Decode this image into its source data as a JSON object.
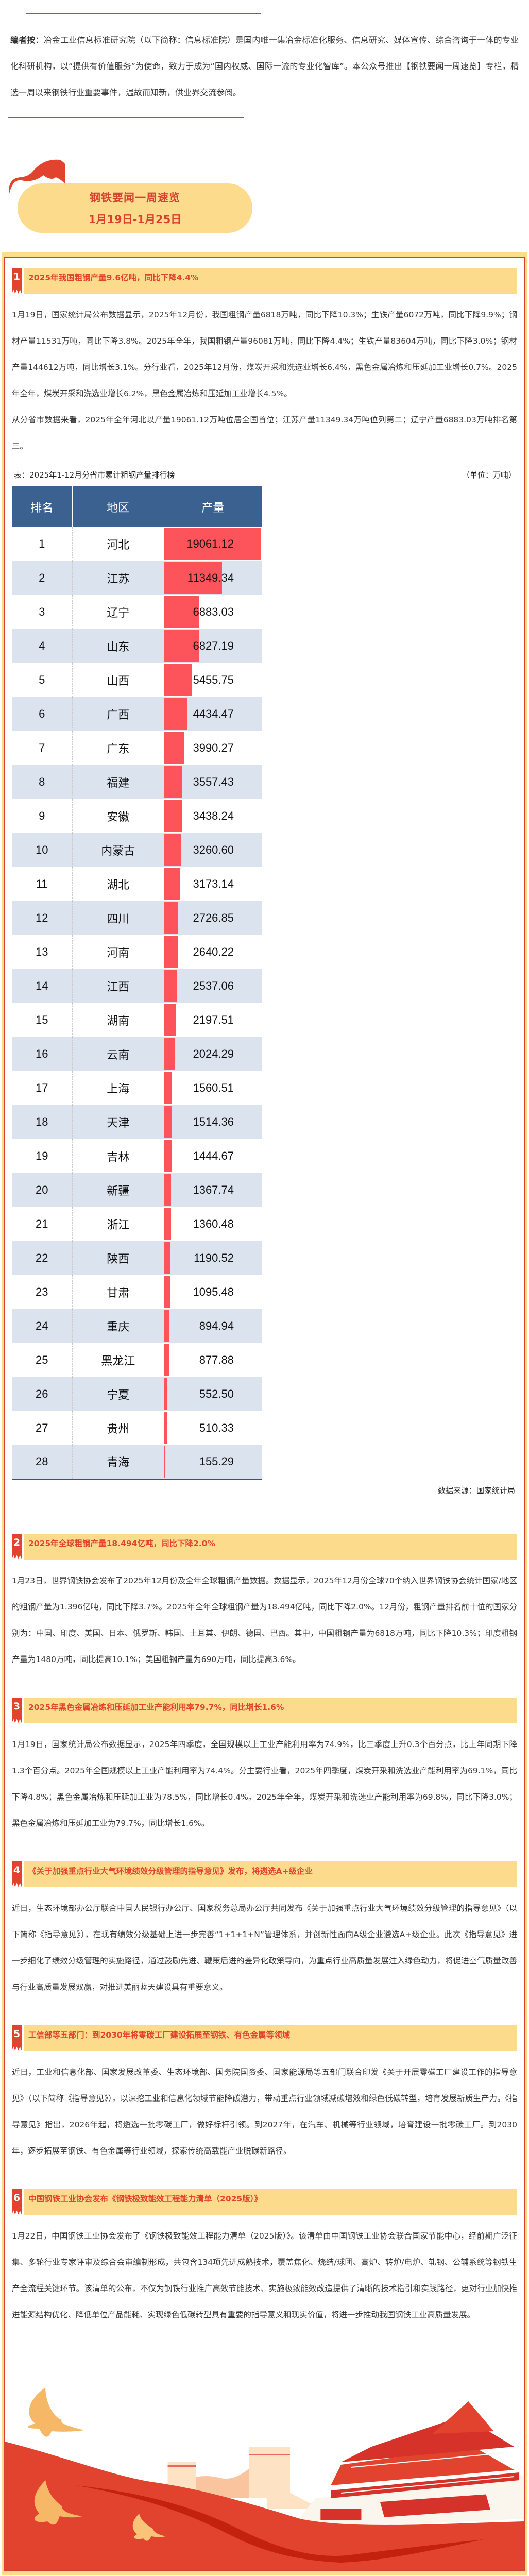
{
  "editor_note": {
    "label": "编者按：",
    "text": "冶金工业信息标准研究院（以下简称：信息标准院）是国内唯一集冶金标准化服务、信息研究、媒体宣传、综合咨询于一体的专业化科研机构，以“提供有价值服务”为使命，致力于成为“国内权威、国际一流的专业化智库”。本公众号推出【钢铁要闻一周速览】专栏，精选一周以来钢铁行业重要事件，温故而知新，供业界交流参阅。"
  },
  "banner": {
    "title": "钢铁要闻一周速览",
    "date_range": "1月19日-1月25日"
  },
  "colors": {
    "accent_red": "#e2432f",
    "banner_yellow": "#fcdc8c",
    "table_header_blue": "#3a6190",
    "bar_red": "#fd545b",
    "alt_row": "#dbe3ef"
  },
  "news": [
    {
      "num": "1",
      "title": "2025年我国粗钢产量9.6亿吨，同比下降4.4%",
      "paragraphs": [
        "1月19日，国家统计局公布数据显示，2025年12月份，我国粗钢产量6818万吨，同比下降10.3%；生铁产量6072万吨，同比下降9.9%；钢材产量11531万吨，同比下降3.8%。2025年全年，我国粗钢产量96081万吨，同比下降4.4%；生铁产量83604万吨，同比下降3.0%；钢材产量144612万吨，同比增长3.1%。分行业看，2025年12月份，煤炭开采和洗选业增长6.4%，黑色金属冶炼和压延加工业增长0.7%。2025年全年，煤炭开采和洗选业增长6.2%，黑色金属冶炼和压延加工业增长4.5%。",
        "从分省市数据来看，2025年全年河北以产量19061.12万吨位居全国首位；江苏产量11349.34万吨位列第二；辽宁产量6883.03万吨排名第三。"
      ]
    },
    {
      "num": "2",
      "title": "2025年全球粗钢产量18.494亿吨，同比下降2.0%",
      "paragraphs": [
        "1月23日，世界钢铁协会发布了2025年12月份及全年全球粗钢产量数据。数据显示，2025年12月份全球70个纳入世界钢铁协会统计国家/地区的粗钢产量为1.396亿吨，同比下降3.7%。2025年全年全球粗钢产量为18.494亿吨，同比下降2.0%。12月份，粗钢产量排名前十位的国家分别为：中国、印度、美国、日本、俄罗斯、韩国、土耳其、伊朗、德国、巴西。其中，中国粗钢产量为6818万吨，同比下降10.3%；印度粗钢产量为1480万吨，同比提高10.1%；美国粗钢产量为690万吨，同比提高3.6%。"
      ]
    },
    {
      "num": "3",
      "title": "2025年黑色金属冶炼和压延加工业产能利用率79.7%，同比增长1.6%",
      "paragraphs": [
        "1月19日，国家统计局公布数据显示，2025年四季度，全国规模以上工业产能利用率为74.9%，比三季度上升0.3个百分点，比上年同期下降1.3个百分点。2025年全国规模以上工业产能利用率为74.4%。分主要行业看，2025年四季度，煤炭开采和洗选业产能利用率为69.1%，同比下降4.8%；黑色金属冶炼和压延加工业为78.5%，同比增长0.4%。2025年全年，煤炭开采和洗选业产能利用率为69.8%，同比下降3.0%；黑色金属冶炼和压延加工业为79.7%，同比增长1.6%。"
      ]
    },
    {
      "num": "4",
      "title": "《关于加强重点行业大气环境绩效分级管理的指导意见》发布，将遴选A+级企业",
      "paragraphs": [
        "近日，生态环境部办公厅联合中国人民银行办公厅、国家税务总局办公厅共同发布《关于加强重点行业大气环境绩效分级管理的指导意见》（以下简称《指导意见》），在现有绩效分级基础上进一步完善“1+1+1+N”管理体系，并创新性面向A级企业遴选A+级企业。此次《指导意见》进一步细化了绩效分级管理的实施路径，通过鼓励先进、鞭策后进的差异化政策导向，为重点行业高质量发展注入绿色动力，将促进空气质量改善与行业高质量发展双赢，对推进美丽蓝天建设具有重要意义。"
      ]
    },
    {
      "num": "5",
      "title": "工信部等五部门：到2030年将零碳工厂建设拓展至钢铁、有色金属等领域",
      "paragraphs": [
        "近日，工业和信息化部、国家发展改革委、生态环境部、国务院国资委、国家能源局等五部门联合印发《关于开展零碳工厂建设工作的指导意见》（以下简称《指导意见》），以深挖工业和信息化领域节能降碳潜力，带动重点行业领域减碳增效和绿色低碳转型，培育发展新质生产力。《指导意见》指出，2026年起，将遴选一批零碳工厂，做好标杆引领。到2027年，在汽车、机械等行业领域，培育建设一批零碳工厂。到2030年，逐步拓展至钢铁、有色金属等行业领域，探索传统高载能产业脱碳新路径。"
      ]
    },
    {
      "num": "6",
      "title": "中国钢铁工业协会发布《钢铁极致能效工程能力清单（2025版）》",
      "paragraphs": [
        "1月22日，中国钢铁工业协会发布了《钢铁极致能效工程能力清单（2025版）》。该清单由中国钢铁工业协会联合国家节能中心，经前期广泛征集、多轮行业专家评审及综合会审编制形成，共包含134项先进成熟技术，覆盖焦化、烧结/球团、高炉、转炉/电炉、轧钢、公辅系统等钢铁生产全流程关键环节。该清单的公布，不仅为钢铁行业推广高效节能技术、实施极致能效改造提供了清晰的技术指引和实践路径，更对行业加快推进能源结构优化、降低单位产品能耗、实现绿色低碳转型具有重要的指导意义和现实价值，将进一步推动我国钢铁工业高质量发展。"
      ]
    }
  ],
  "table": {
    "caption": "表：2025年1-12月分省市累计粗钢产量排行榜",
    "unit": "（单位：万吨）",
    "headers": [
      "排名",
      "地区",
      "产量"
    ],
    "rows": [
      {
        "rank": "1",
        "region": "河北",
        "output": "19061.12"
      },
      {
        "rank": "2",
        "region": "江苏",
        "output": "11349.34"
      },
      {
        "rank": "3",
        "region": "辽宁",
        "output": "6883.03"
      },
      {
        "rank": "4",
        "region": "山东",
        "output": "6827.19"
      },
      {
        "rank": "5",
        "region": "山西",
        "output": "5455.75"
      },
      {
        "rank": "6",
        "region": "广西",
        "output": "4434.47"
      },
      {
        "rank": "7",
        "region": "广东",
        "output": "3990.27"
      },
      {
        "rank": "8",
        "region": "福建",
        "output": "3557.43"
      },
      {
        "rank": "9",
        "region": "安徽",
        "output": "3438.24"
      },
      {
        "rank": "10",
        "region": "内蒙古",
        "output": "3260.60"
      },
      {
        "rank": "11",
        "region": "湖北",
        "output": "3173.14"
      },
      {
        "rank": "12",
        "region": "四川",
        "output": "2726.85"
      },
      {
        "rank": "13",
        "region": "河南",
        "output": "2640.22"
      },
      {
        "rank": "14",
        "region": "江西",
        "output": "2537.06"
      },
      {
        "rank": "15",
        "region": "湖南",
        "output": "2197.51"
      },
      {
        "rank": "16",
        "region": "云南",
        "output": "2024.29"
      },
      {
        "rank": "17",
        "region": "上海",
        "output": "1560.51"
      },
      {
        "rank": "18",
        "region": "天津",
        "output": "1514.36"
      },
      {
        "rank": "19",
        "region": "吉林",
        "output": "1444.67"
      },
      {
        "rank": "20",
        "region": "新疆",
        "output": "1367.74"
      },
      {
        "rank": "21",
        "region": "浙江",
        "output": "1360.48"
      },
      {
        "rank": "22",
        "region": "陕西",
        "output": "1190.52"
      },
      {
        "rank": "23",
        "region": "甘肃",
        "output": "1095.48"
      },
      {
        "rank": "24",
        "region": "重庆",
        "output": "894.94"
      },
      {
        "rank": "25",
        "region": "黑龙江",
        "output": "877.88"
      },
      {
        "rank": "26",
        "region": "宁夏",
        "output": "552.50"
      },
      {
        "rank": "27",
        "region": "贵州",
        "output": "510.33"
      },
      {
        "rank": "28",
        "region": "青海",
        "output": "155.29"
      }
    ],
    "source": "数据来源：国家统计局"
  },
  "chart_data": {
    "type": "table",
    "title": "表：2025年1-12月分省市累计粗钢产量排行榜",
    "ylabel": "产量（万吨）",
    "categories": [
      "河北",
      "江苏",
      "辽宁",
      "山东",
      "山西",
      "广西",
      "广东",
      "福建",
      "安徽",
      "内蒙古",
      "湖北",
      "四川",
      "河南",
      "江西",
      "湖南",
      "云南",
      "上海",
      "天津",
      "吉林",
      "新疆",
      "浙江",
      "陕西",
      "甘肃",
      "重庆",
      "黑龙江",
      "宁夏",
      "贵州",
      "青海"
    ],
    "values": [
      19061.12,
      11349.34,
      6883.03,
      6827.19,
      5455.75,
      4434.47,
      3990.27,
      3557.43,
      3438.24,
      3260.6,
      3173.14,
      2726.85,
      2640.22,
      2537.06,
      2197.51,
      2024.29,
      1560.51,
      1514.36,
      1444.67,
      1367.74,
      1360.48,
      1190.52,
      1095.48,
      894.94,
      877.88,
      552.5,
      510.33,
      155.29
    ],
    "legend": [],
    "notes": "Data bars rendered in production column; source 国家统计局"
  }
}
